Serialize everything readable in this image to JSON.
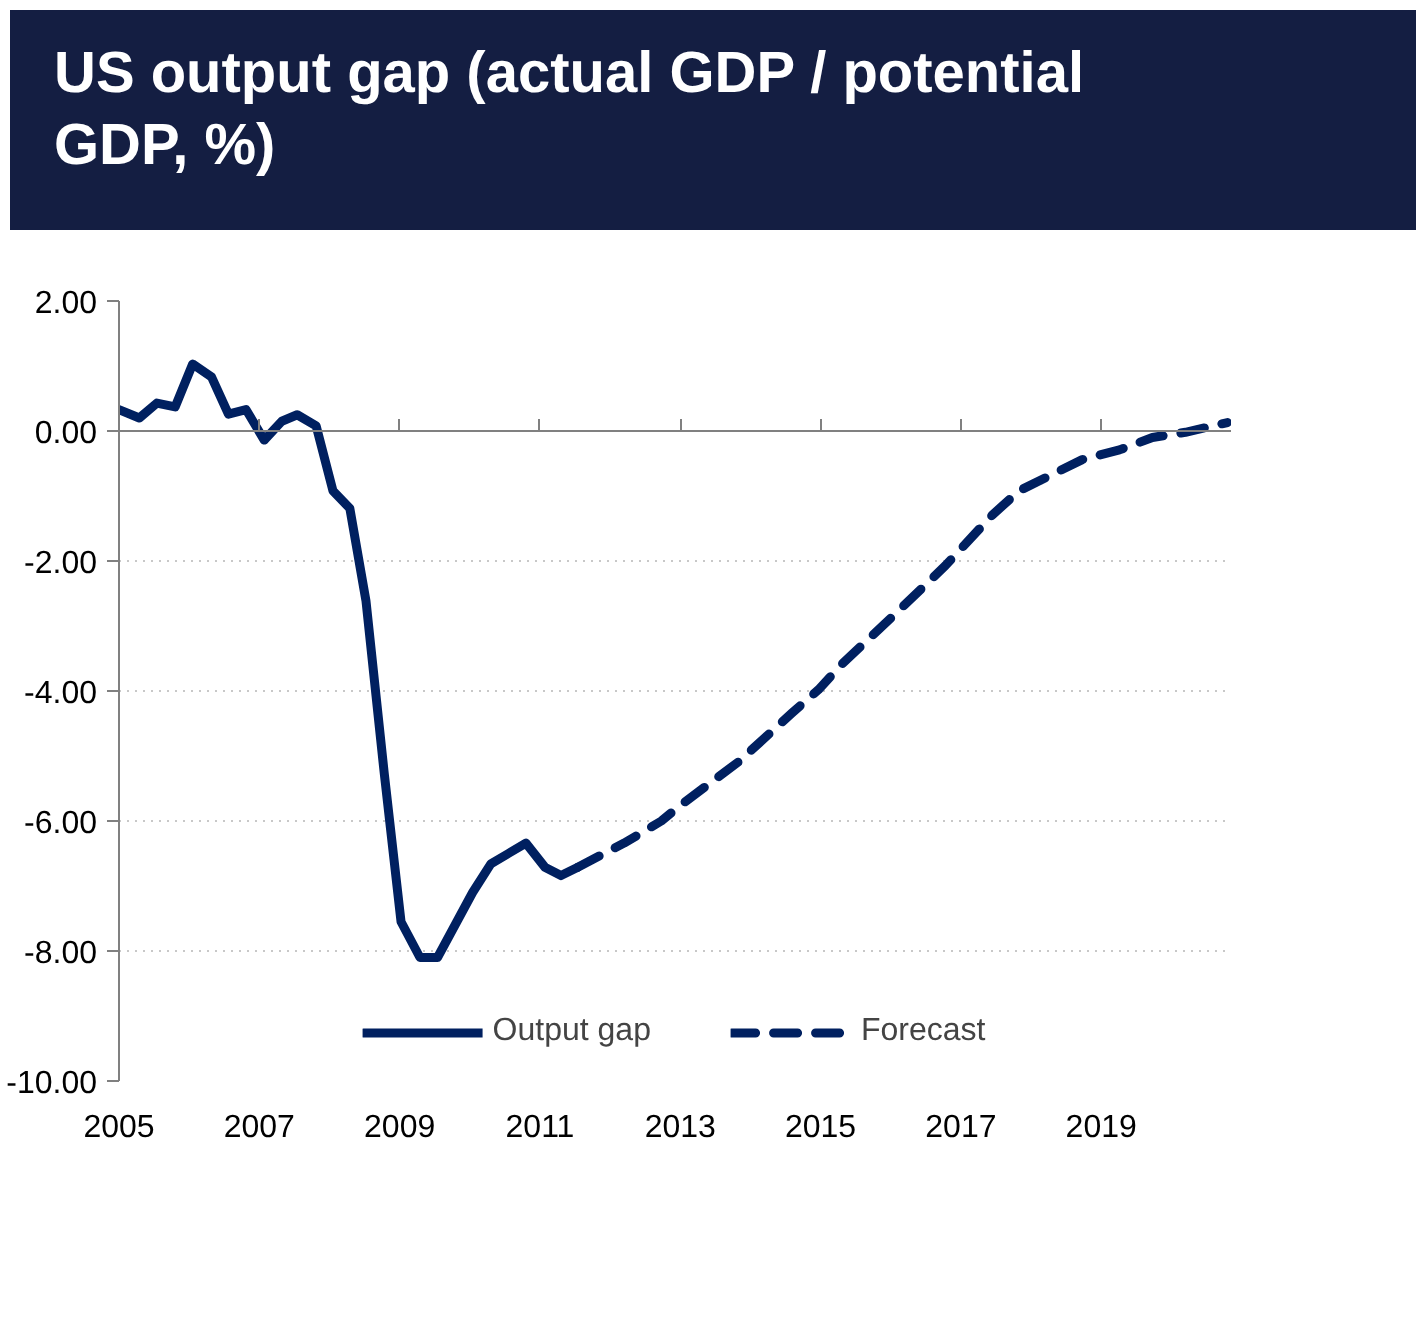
{
  "chart_data": {
    "type": "line",
    "title": "US output gap (actual GDP / potential GDP, %)",
    "series": [
      {
        "name": "Output gap",
        "color": "#002060",
        "line_style": "solid",
        "x": [
          2005.0,
          2005.29,
          2005.54,
          2005.8,
          2006.05,
          2006.32,
          2006.56,
          2006.81,
          2007.07,
          2007.32,
          2007.54,
          2007.81,
          2008.05,
          2008.29,
          2008.52,
          2008.78,
          2009.02,
          2009.29,
          2009.54,
          2009.79,
          2010.04,
          2010.3,
          2010.55,
          2010.8,
          2011.07,
          2011.3,
          2011.54
        ],
        "values": [
          0.33,
          0.2,
          0.43,
          0.37,
          1.03,
          0.83,
          0.26,
          0.33,
          -0.14,
          0.15,
          0.25,
          0.08,
          -0.92,
          -1.19,
          -2.61,
          -5.26,
          -7.55,
          -8.1,
          -8.1,
          -7.6,
          -7.1,
          -6.66,
          -6.5,
          -6.34,
          -6.71,
          -6.84,
          -6.71
        ]
      },
      {
        "name": "Forecast",
        "color": "#002060",
        "line_style": "dashed",
        "x": [
          2011.54,
          2012.2,
          2012.73,
          2013.0,
          2013.83,
          2014.59,
          2014.97,
          2015.3,
          2016.02,
          2016.78,
          2017.45,
          2017.83,
          2018.26,
          2018.73,
          2019.26,
          2019.73,
          2020.2,
          2020.8
        ],
        "values": [
          -6.71,
          -6.34,
          -6.0,
          -5.76,
          -5.09,
          -4.34,
          -3.98,
          -3.59,
          -2.86,
          -2.07,
          -1.29,
          -0.92,
          -0.69,
          -0.44,
          -0.29,
          -0.1,
          -0.02,
          0.13
        ]
      }
    ],
    "xlim": [
      2005,
      2020.85
    ],
    "xticks": [
      2005,
      2007,
      2009,
      2011,
      2013,
      2015,
      2017,
      2019
    ],
    "ylim": [
      -10,
      2
    ],
    "yticks": [
      {
        "value": 2,
        "label": "2.00"
      },
      {
        "value": 0,
        "label": "0.00"
      },
      {
        "value": -2,
        "label": "-2.00"
      },
      {
        "value": -4,
        "label": "-4.00"
      },
      {
        "value": -6,
        "label": "-6.00"
      },
      {
        "value": -8,
        "label": "-8.00"
      },
      {
        "value": -10,
        "label": "-10.00"
      }
    ],
    "grid": "y",
    "legend": "bottom",
    "marker": "none"
  }
}
